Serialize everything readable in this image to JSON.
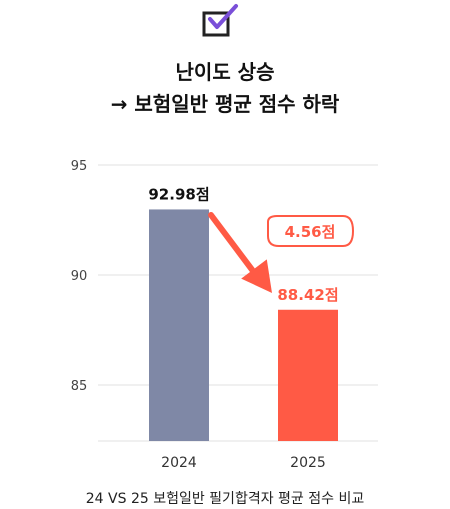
{
  "header": {
    "icon": "checkbox-checked-icon",
    "title_line1": "난이도 상승",
    "title_line2": "→ 보험일반 평균 점수 하락"
  },
  "chart_data": {
    "type": "bar",
    "categories": [
      "2024",
      "2025"
    ],
    "values": [
      92.98,
      88.42
    ],
    "data_labels": [
      "92.98점",
      "88.42점"
    ],
    "ylim": [
      82.5,
      95
    ],
    "yticks": [
      85,
      90,
      95
    ],
    "grid": true,
    "colors": [
      "#7f88a6",
      "#ff5a45"
    ],
    "annotation": {
      "label": "4.56점",
      "color": "#ff5a45"
    }
  },
  "caption": "24 VS 25 보험일반 필기합격자 평균 점수 비교"
}
